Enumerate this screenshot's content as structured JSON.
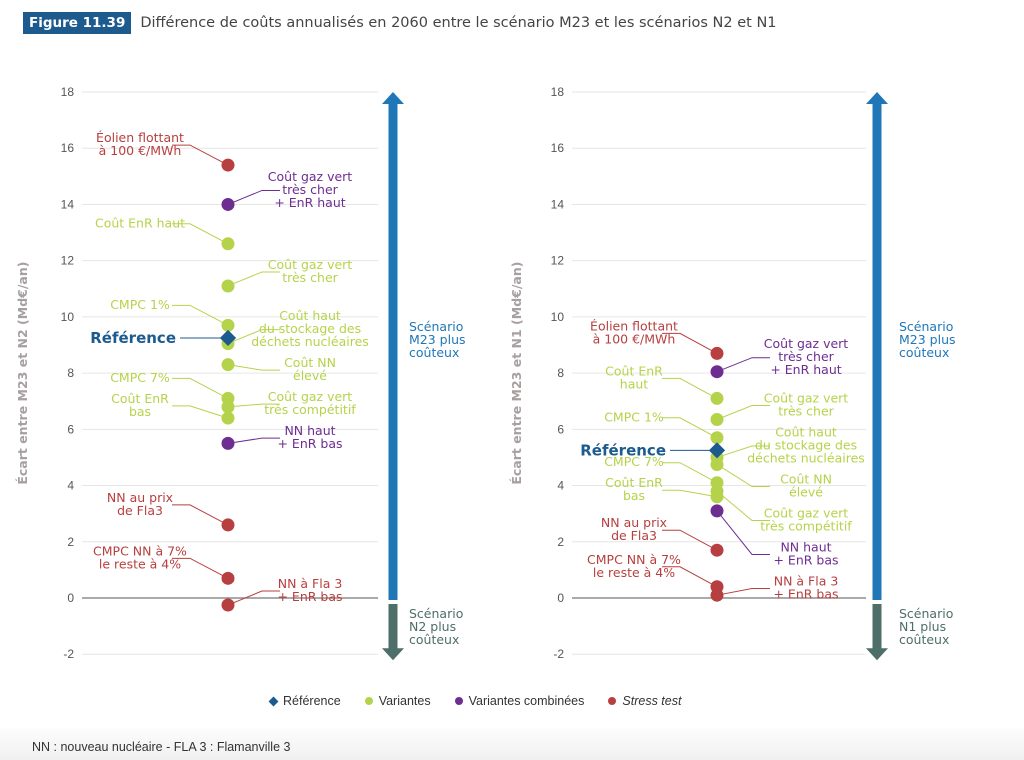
{
  "header": {
    "figure_label": "Figure 11.39",
    "title": "Différence de coûts annualisés en 2060 entre le scénario M23 et les scénarios N2 et N1"
  },
  "colors": {
    "reference": "#1d5a8e",
    "variantes": "#b5d34a",
    "variantes_combinees": "#6e2d91",
    "stress_test": "#b83f3f",
    "arrow_up": "#1f77b8",
    "arrow_down": "#4e6e6a",
    "badge": "#1d5a8e"
  },
  "legend": [
    {
      "key": "reference",
      "label": "Référence",
      "marker": "diamond"
    },
    {
      "key": "variantes",
      "label": "Variantes",
      "marker": "dot"
    },
    {
      "key": "variantes_combinees",
      "label": "Variantes combinées",
      "marker": "dot"
    },
    {
      "key": "stress_test",
      "label": "Stress test",
      "marker": "dot",
      "italic": true
    }
  ],
  "footnote": "NN : nouveau nucléaire - FLA 3 : Flamanville 3",
  "chart_data": [
    {
      "type": "scatter",
      "title": "",
      "ylabel": "Écart entre M23 et N2 (Md€/an)",
      "ylim": [
        -2,
        18
      ],
      "yticks": [
        -2,
        0,
        2,
        4,
        6,
        8,
        10,
        12,
        14,
        16,
        18
      ],
      "grid": true,
      "arrow_up_label": [
        "Scénario",
        "M23 plus",
        "coûteux"
      ],
      "arrow_down_label": [
        "Scénario",
        "N2 plus",
        "coûteux"
      ],
      "points": [
        {
          "label": [
            "Éolien flottant",
            "à 100 €/MWh"
          ],
          "value": 15.4,
          "category": "stress_test",
          "side": "left"
        },
        {
          "label": [
            "Coût gaz vert",
            "très cher",
            "+ EnR haut"
          ],
          "value": 14.0,
          "category": "variantes_combinees",
          "side": "right"
        },
        {
          "label": [
            "Coût EnR haut"
          ],
          "value": 12.6,
          "category": "variantes",
          "side": "left"
        },
        {
          "label": [
            "Coût gaz vert",
            "très cher"
          ],
          "value": 11.1,
          "category": "variantes",
          "side": "right"
        },
        {
          "label": [
            "CMPC 1%"
          ],
          "value": 9.7,
          "category": "variantes",
          "side": "left"
        },
        {
          "label": [
            "Référence"
          ],
          "value": 9.25,
          "category": "reference",
          "side": "left"
        },
        {
          "label": [
            "Coût haut",
            "du stockage des",
            "déchets nucléaires"
          ],
          "value": 9.05,
          "category": "variantes",
          "side": "right"
        },
        {
          "label": [
            "Coût NN",
            "élevé"
          ],
          "value": 8.3,
          "category": "variantes",
          "side": "right"
        },
        {
          "label": [
            "CMPC 7%"
          ],
          "value": 7.1,
          "category": "variantes",
          "side": "left"
        },
        {
          "label": [
            "Coût gaz vert",
            "très compétitif"
          ],
          "value": 6.8,
          "category": "variantes",
          "side": "right"
        },
        {
          "label": [
            "Coût EnR",
            "bas"
          ],
          "value": 6.4,
          "category": "variantes",
          "side": "left"
        },
        {
          "label": [
            "NN haut",
            "+ EnR bas"
          ],
          "value": 5.5,
          "category": "variantes_combinees",
          "side": "right"
        },
        {
          "label": [
            "NN au prix",
            "de Fla3"
          ],
          "value": 2.6,
          "category": "stress_test",
          "side": "left"
        },
        {
          "label": [
            "CMPC NN à 7%",
            "le reste à 4%"
          ],
          "value": 0.7,
          "category": "stress_test",
          "side": "left"
        },
        {
          "label": [
            "NN à Fla 3",
            "+ EnR bas"
          ],
          "value": -0.25,
          "category": "stress_test",
          "side": "right"
        }
      ]
    },
    {
      "type": "scatter",
      "title": "",
      "ylabel": "Écart entre M23 et N1 (Md€/an)",
      "ylim": [
        -2,
        18
      ],
      "yticks": [
        -2,
        0,
        2,
        4,
        6,
        8,
        10,
        12,
        14,
        16,
        18
      ],
      "grid": true,
      "arrow_up_label": [
        "Scénario",
        "M23 plus",
        "coûteux"
      ],
      "arrow_down_label": [
        "Scénario",
        "N1 plus",
        "coûteux"
      ],
      "points": [
        {
          "label": [
            "Éolien flottant",
            "à 100 €/MWh"
          ],
          "value": 8.7,
          "category": "stress_test",
          "side": "left"
        },
        {
          "label": [
            "Coût gaz vert",
            "très cher",
            "+ EnR haut"
          ],
          "value": 8.05,
          "category": "variantes_combinees",
          "side": "right"
        },
        {
          "label": [
            "Coût EnR",
            "haut"
          ],
          "value": 7.1,
          "category": "variantes",
          "side": "left"
        },
        {
          "label": [
            "Coût gaz vert",
            "très cher"
          ],
          "value": 6.35,
          "category": "variantes",
          "side": "right"
        },
        {
          "label": [
            "CMPC 1%"
          ],
          "value": 5.7,
          "category": "variantes",
          "side": "left"
        },
        {
          "label": [
            "Référence"
          ],
          "value": 5.25,
          "category": "reference",
          "side": "left"
        },
        {
          "label": [
            "Coût haut",
            "du stockage des",
            "déchets nucléaires"
          ],
          "value": 5.0,
          "category": "variantes",
          "side": "right"
        },
        {
          "label": [
            "Coût NN",
            "élevé"
          ],
          "value": 4.75,
          "category": "variantes",
          "side": "right"
        },
        {
          "label": [
            "CMPC 7%"
          ],
          "value": 4.1,
          "category": "variantes",
          "side": "left"
        },
        {
          "label": [
            "Coût gaz vert",
            "très compétitif"
          ],
          "value": 3.8,
          "category": "variantes",
          "side": "right"
        },
        {
          "label": [
            "Coût EnR",
            "bas"
          ],
          "value": 3.6,
          "category": "variantes",
          "side": "left"
        },
        {
          "label": [
            "NN haut",
            "+ EnR bas"
          ],
          "value": 3.1,
          "category": "variantes_combinees",
          "side": "right"
        },
        {
          "label": [
            "NN au prix",
            "de Fla3"
          ],
          "value": 1.7,
          "category": "stress_test",
          "side": "left"
        },
        {
          "label": [
            "CMPC NN à 7%",
            "le reste à 4%"
          ],
          "value": 0.4,
          "category": "stress_test",
          "side": "left"
        },
        {
          "label": [
            "NN à Fla 3",
            "+ EnR bas"
          ],
          "value": 0.1,
          "category": "stress_test",
          "side": "right"
        }
      ]
    }
  ]
}
